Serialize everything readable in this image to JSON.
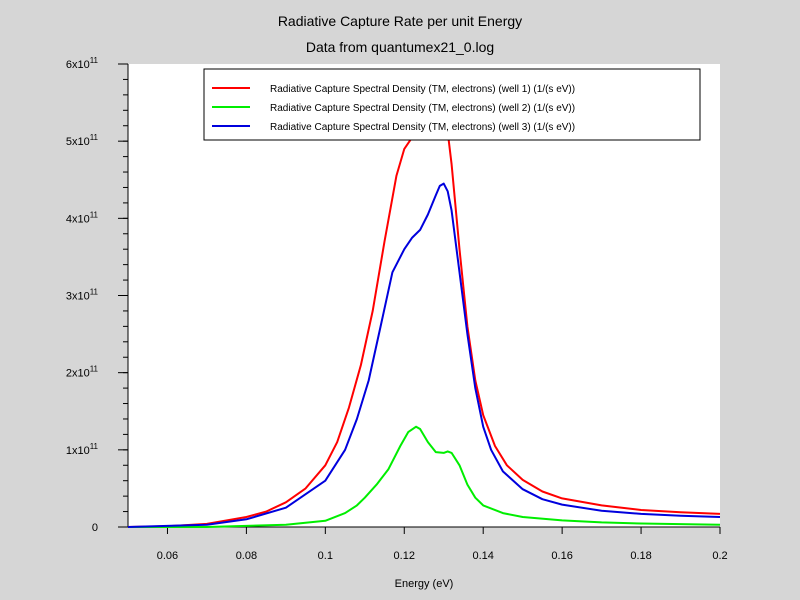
{
  "chart_data": {
    "type": "line",
    "title": "Radiative Capture Rate per unit Energy",
    "subtitle": "Data from quantumex21_0.log",
    "xlabel": "Energy (eV)",
    "ylabel": "",
    "xlim": [
      0.05,
      0.2
    ],
    "ylim": [
      0,
      600000000000.0
    ],
    "x_ticks": [
      {
        "value": 0.06,
        "label": "0.06"
      },
      {
        "value": 0.08,
        "label": "0.08"
      },
      {
        "value": 0.1,
        "label": "0.1"
      },
      {
        "value": 0.12,
        "label": "0.12"
      },
      {
        "value": 0.14,
        "label": "0.14"
      },
      {
        "value": 0.16,
        "label": "0.16"
      },
      {
        "value": 0.18,
        "label": "0.18"
      },
      {
        "value": 0.2,
        "label": "0.2"
      }
    ],
    "y_ticks": [
      {
        "value": 0,
        "mantissa": "0",
        "exp": ""
      },
      {
        "value": 100000000000.0,
        "mantissa": "1x10",
        "exp": "11"
      },
      {
        "value": 200000000000.0,
        "mantissa": "2x10",
        "exp": "11"
      },
      {
        "value": 300000000000.0,
        "mantissa": "3x10",
        "exp": "11"
      },
      {
        "value": 400000000000.0,
        "mantissa": "4x10",
        "exp": "11"
      },
      {
        "value": 500000000000.0,
        "mantissa": "5x10",
        "exp": "11"
      },
      {
        "value": 600000000000.0,
        "mantissa": "6x10",
        "exp": "11"
      }
    ],
    "y_minor_step": 20000000000.0,
    "grid": false,
    "legend_position": "top-right",
    "series": [
      {
        "name": "Radiative Capture Spectral Density (TM, electrons) (well 1) (1/(s eV))",
        "color": "#ff0000",
        "x": [
          0.05,
          0.06,
          0.07,
          0.08,
          0.085,
          0.09,
          0.095,
          0.1,
          0.103,
          0.106,
          0.109,
          0.112,
          0.115,
          0.118,
          0.12,
          0.122,
          0.124,
          0.125,
          0.126,
          0.128,
          0.13,
          0.132,
          0.134,
          0.136,
          0.138,
          0.14,
          0.143,
          0.146,
          0.15,
          0.155,
          0.16,
          0.17,
          0.18,
          0.19,
          0.2
        ],
        "y": [
          0,
          1000000000.0,
          4000000000.0,
          13000000000.0,
          20000000000.0,
          32000000000.0,
          50000000000.0,
          80000000000.0,
          110000000000.0,
          155000000000.0,
          210000000000.0,
          280000000000.0,
          370000000000.0,
          455000000000.0,
          490000000000.0,
          505000000000.0,
          508000000000.0,
          505000000000.0,
          515000000000.0,
          560000000000.0,
          555000000000.0,
          470000000000.0,
          360000000000.0,
          260000000000.0,
          190000000000.0,
          145000000000.0,
          105000000000.0,
          80000000000.0,
          61000000000.0,
          46000000000.0,
          37000000000.0,
          28000000000.0,
          22000000000.0,
          19000000000.0,
          17000000000.0
        ]
      },
      {
        "name": "Radiative Capture Spectral Density (TM, electrons) (well 2) (1/(s eV))",
        "color": "#00ee00",
        "x": [
          0.05,
          0.07,
          0.09,
          0.1,
          0.105,
          0.108,
          0.11,
          0.113,
          0.116,
          0.119,
          0.121,
          0.123,
          0.124,
          0.126,
          0.128,
          0.13,
          0.131,
          0.132,
          0.134,
          0.136,
          0.138,
          0.14,
          0.145,
          0.15,
          0.16,
          0.17,
          0.18,
          0.2
        ],
        "y": [
          0,
          0,
          3000000000.0,
          8000000000.0,
          18000000000.0,
          28000000000.0,
          38000000000.0,
          55000000000.0,
          75000000000.0,
          105000000000.0,
          123000000000.0,
          130000000000.0,
          127000000000.0,
          110000000000.0,
          97000000000.0,
          96000000000.0,
          98000000000.0,
          96000000000.0,
          80000000000.0,
          55000000000.0,
          38000000000.0,
          28000000000.0,
          18000000000.0,
          13000000000.0,
          8500000000.0,
          6000000000.0,
          4500000000.0,
          3000000000.0
        ]
      },
      {
        "name": "Radiative Capture Spectral Density (TM, electrons) (well 3) (1/(s eV))",
        "color": "#0000dd",
        "x": [
          0.05,
          0.07,
          0.08,
          0.09,
          0.1,
          0.105,
          0.108,
          0.111,
          0.114,
          0.117,
          0.12,
          0.122,
          0.124,
          0.126,
          0.128,
          0.129,
          0.13,
          0.131,
          0.132,
          0.134,
          0.136,
          0.138,
          0.14,
          0.142,
          0.145,
          0.15,
          0.155,
          0.16,
          0.17,
          0.18,
          0.19,
          0.2
        ],
        "y": [
          0,
          3000000000.0,
          10000000000.0,
          25000000000.0,
          60000000000.0,
          100000000000.0,
          140000000000.0,
          190000000000.0,
          260000000000.0,
          330000000000.0,
          360000000000.0,
          375000000000.0,
          385000000000.0,
          405000000000.0,
          430000000000.0,
          442000000000.0,
          445000000000.0,
          435000000000.0,
          410000000000.0,
          330000000000.0,
          250000000000.0,
          180000000000.0,
          130000000000.0,
          100000000000.0,
          72000000000.0,
          49000000000.0,
          36000000000.0,
          29000000000.0,
          21000000000.0,
          17000000000.0,
          14500000000.0,
          13000000000.0
        ]
      }
    ]
  }
}
